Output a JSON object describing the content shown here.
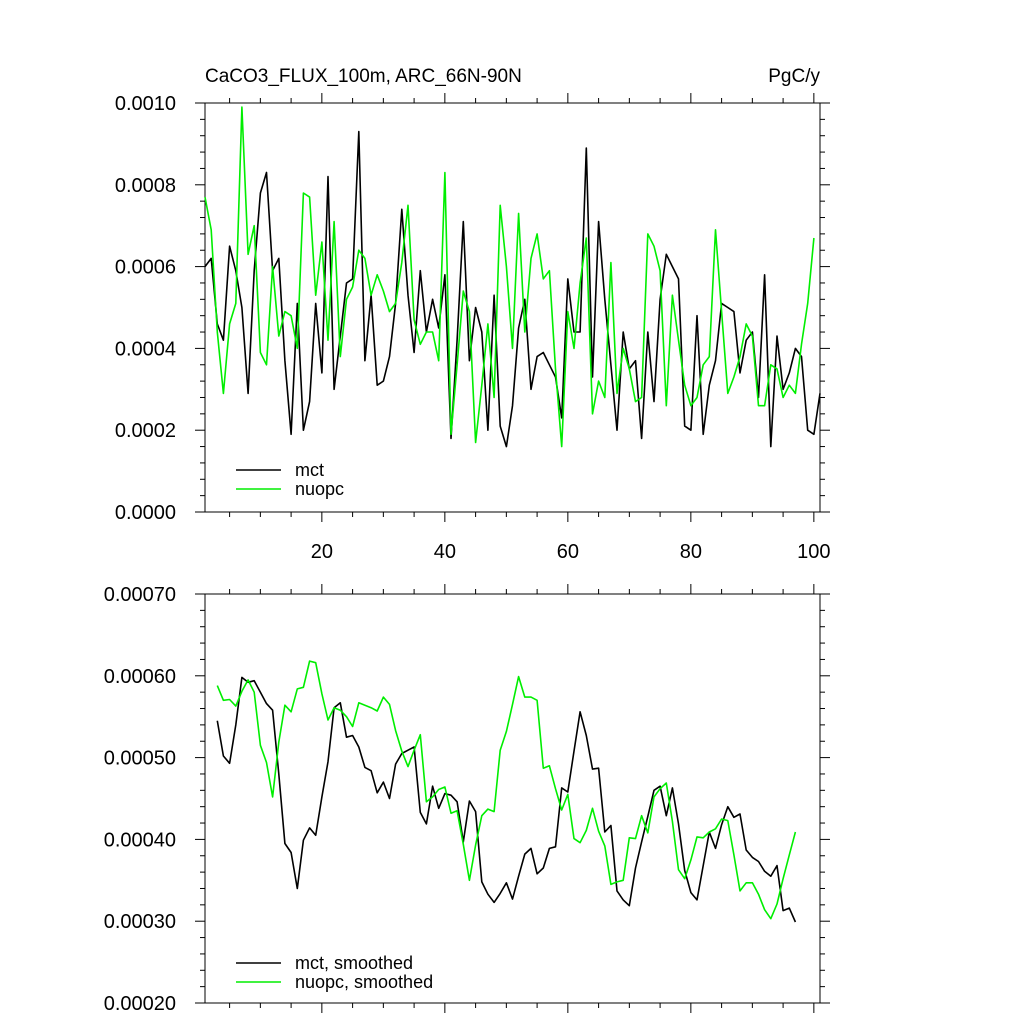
{
  "chart_data": [
    {
      "type": "line",
      "title": "CaCO3_FLUX_100m, ARC_66N-90N",
      "units": "PgC/y",
      "xlim": [
        1,
        101
      ],
      "ylim": [
        0,
        0.001
      ],
      "x_ticks": [
        20,
        40,
        60,
        80,
        100
      ],
      "y_ticks": [
        "0.0000",
        "0.0002",
        "0.0004",
        "0.0006",
        "0.0008",
        "0.0010"
      ],
      "grid": false,
      "legend_position": "bottom-left",
      "series": [
        {
          "name": "mct",
          "color": "#000000",
          "x_start": 1,
          "values": [
            0.0006,
            0.00062,
            0.00046,
            0.00042,
            0.00065,
            0.00059,
            0.0005,
            0.00029,
            0.00059,
            0.00078,
            0.00083,
            0.00059,
            0.00062,
            0.00037,
            0.00019,
            0.00051,
            0.0002,
            0.00027,
            0.00051,
            0.00034,
            0.00082,
            0.0003,
            0.00043,
            0.00056,
            0.00057,
            0.00093,
            0.00037,
            0.00053,
            0.00031,
            0.00032,
            0.00038,
            0.00051,
            0.00074,
            0.00053,
            0.00039,
            0.00059,
            0.00044,
            0.00052,
            0.00045,
            0.00058,
            0.00018,
            0.00042,
            0.00071,
            0.00037,
            0.0005,
            0.00044,
            0.0002,
            0.00053,
            0.00021,
            0.00016,
            0.00026,
            0.00045,
            0.00052,
            0.0003,
            0.00038,
            0.00039,
            0.00036,
            0.00033,
            0.00023,
            0.00057,
            0.00044,
            0.00044,
            0.00089,
            0.00033,
            0.00071,
            0.00052,
            0.00036,
            0.0002,
            0.00044,
            0.00035,
            0.00037,
            0.00018,
            0.00044,
            0.00027,
            0.00052,
            0.00063,
            0.0006,
            0.00057,
            0.00021,
            0.0002,
            0.00048,
            0.00019,
            0.00031,
            0.00037,
            0.00051,
            0.0005,
            0.00049,
            0.00034,
            0.00042,
            0.00044,
            0.00028,
            0.00058,
            0.00016,
            0.00043,
            0.0003,
            0.00034,
            0.0004,
            0.00038,
            0.0002,
            0.00019,
            0.00029
          ]
        },
        {
          "name": "nuopc",
          "color": "#00ee00",
          "x_start": 1,
          "values": [
            0.00077,
            0.00069,
            0.00044,
            0.00029,
            0.00046,
            0.00051,
            0.00099,
            0.00063,
            0.0007,
            0.00039,
            0.00036,
            0.0006,
            0.00043,
            0.00049,
            0.00048,
            0.0004,
            0.00078,
            0.00077,
            0.00053,
            0.00066,
            0.00042,
            0.00071,
            0.00038,
            0.00052,
            0.00055,
            0.00064,
            0.00062,
            0.00053,
            0.00058,
            0.00054,
            0.00049,
            0.00051,
            0.00061,
            0.00075,
            0.00047,
            0.00041,
            0.00044,
            0.00044,
            0.00037,
            0.00083,
            0.00019,
            0.00036,
            0.00054,
            0.00049,
            0.00017,
            0.00031,
            0.00046,
            0.00028,
            0.00075,
            0.0006,
            0.0004,
            0.00073,
            0.00044,
            0.00062,
            0.00068,
            0.00057,
            0.00059,
            0.00035,
            0.00016,
            0.00049,
            0.0004,
            0.00056,
            0.00067,
            0.00024,
            0.00032,
            0.00028,
            0.00061,
            0.00029,
            0.0004,
            0.00035,
            0.00027,
            0.00028,
            0.00068,
            0.00065,
            0.00059,
            0.00026,
            0.00053,
            0.00042,
            0.00031,
            0.00026,
            0.00028,
            0.00036,
            0.00038,
            0.00069,
            0.00049,
            0.00029,
            0.00033,
            0.00038,
            0.00046,
            0.00043,
            0.00026,
            0.00026,
            0.00036,
            0.00035,
            0.00028,
            0.00031,
            0.00029,
            0.00041,
            0.00051,
            0.00067
          ]
        }
      ]
    },
    {
      "type": "line",
      "title": "",
      "xlim": [
        1,
        101
      ],
      "ylim": [
        0.0002,
        0.0007
      ],
      "y_ticks": [
        "0.00020",
        "0.00030",
        "0.00040",
        "0.00050",
        "0.00060",
        "0.00070"
      ],
      "grid": false,
      "legend_position": "bottom-left",
      "series": [
        {
          "name": "mct, smoothed",
          "color": "#000000",
          "x_start": 3,
          "values": [
            0.000545,
            0.000502,
            0.000493,
            0.00054,
            0.000598,
            0.000592,
            0.000594,
            0.00058,
            0.000566,
            0.000558,
            0.00048,
            0.000395,
            0.000384,
            0.00034,
            0.000399,
            0.000414,
            0.000405,
            0.000452,
            0.000495,
            0.000561,
            0.000567,
            0.000525,
            0.000527,
            0.000513,
            0.000488,
            0.000484,
            0.000457,
            0.00047,
            0.00045,
            0.000492,
            0.000505,
            0.000509,
            0.000513,
            0.000433,
            0.000419,
            0.000465,
            0.000438,
            0.000456,
            0.000454,
            0.000446,
            0.000397,
            0.000447,
            0.000434,
            0.000348,
            0.000333,
            0.000323,
            0.000334,
            0.000347,
            0.000327,
            0.000355,
            0.000382,
            0.000389,
            0.000358,
            0.000365,
            0.000389,
            0.000391,
            0.000463,
            0.000458,
            0.000508,
            0.000556,
            0.000527,
            0.000486,
            0.000487,
            0.000409,
            0.000417,
            0.000337,
            0.000326,
            0.000319,
            0.000365,
            0.000397,
            0.000428,
            0.00046,
            0.000465,
            0.000429,
            0.000463,
            0.000419,
            0.000362,
            0.000335,
            0.000326,
            0.000368,
            0.000409,
            0.000389,
            0.000418,
            0.00044,
            0.000427,
            0.000431,
            0.000387,
            0.000378,
            0.000373,
            0.000361,
            0.000355,
            0.000368,
            0.000313,
            0.000316,
            0.000299
          ]
        },
        {
          "name": "nuopc, smoothed",
          "color": "#00ee00",
          "x_start": 3,
          "values": [
            0.000588,
            0.00057,
            0.000571,
            0.000563,
            0.000581,
            0.000595,
            0.00058,
            0.000515,
            0.000494,
            0.000452,
            0.000519,
            0.000564,
            0.000556,
            0.000584,
            0.000586,
            0.000618,
            0.000616,
            0.000578,
            0.000546,
            0.000561,
            0.000558,
            0.00055,
            0.000538,
            0.000567,
            0.000564,
            0.000561,
            0.000557,
            0.000574,
            0.000565,
            0.000533,
            0.000508,
            0.000489,
            0.000509,
            0.000528,
            0.000446,
            0.000452,
            0.000461,
            0.000464,
            0.000432,
            0.000435,
            0.000394,
            0.00035,
            0.000393,
            0.000429,
            0.000437,
            0.000434,
            0.000509,
            0.000532,
            0.000565,
            0.000599,
            0.000574,
            0.000574,
            0.00057,
            0.000487,
            0.00049,
            0.000462,
            0.000436,
            0.000455,
            0.000401,
            0.000396,
            0.000411,
            0.000438,
            0.00041,
            0.000392,
            0.000345,
            0.000348,
            0.00035,
            0.000402,
            0.000401,
            0.000429,
            0.000408,
            0.000452,
            0.000462,
            0.000469,
            0.000422,
            0.000363,
            0.000352,
            0.000375,
            0.000403,
            0.000402,
            0.000409,
            0.000413,
            0.000425,
            0.000423,
            0.000381,
            0.000337,
            0.000347,
            0.000347,
            0.000333,
            0.000314,
            0.000303,
            0.000321,
            0.000352,
            0.000381,
            0.000409
          ]
        }
      ]
    }
  ]
}
